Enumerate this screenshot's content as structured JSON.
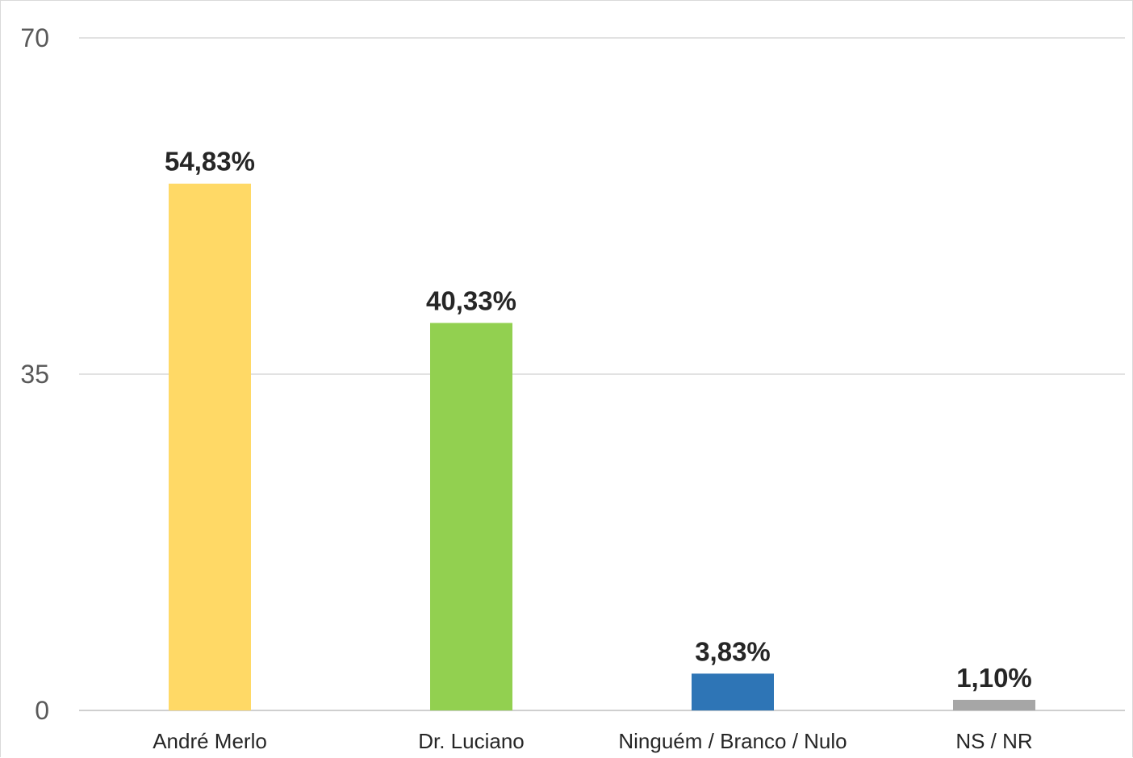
{
  "chart_data": {
    "type": "bar",
    "title": "",
    "xlabel": "",
    "ylabel": "",
    "categories": [
      "André Merlo",
      "Dr. Luciano",
      "Ninguém / Branco / Nulo",
      "NS / NR"
    ],
    "values": [
      54.83,
      40.33,
      3.83,
      1.1
    ],
    "data_labels": [
      "54,83%",
      "40,33%",
      "3,83%",
      "1,10%"
    ],
    "colors": [
      "#FFD966",
      "#92D050",
      "#2E75B6",
      "#A6A6A6"
    ],
    "ylim": [
      0,
      70
    ],
    "yticks": [
      0,
      35,
      70
    ],
    "ytick_labels": [
      "0",
      "35",
      "70"
    ],
    "grid": true,
    "legend": "none"
  }
}
